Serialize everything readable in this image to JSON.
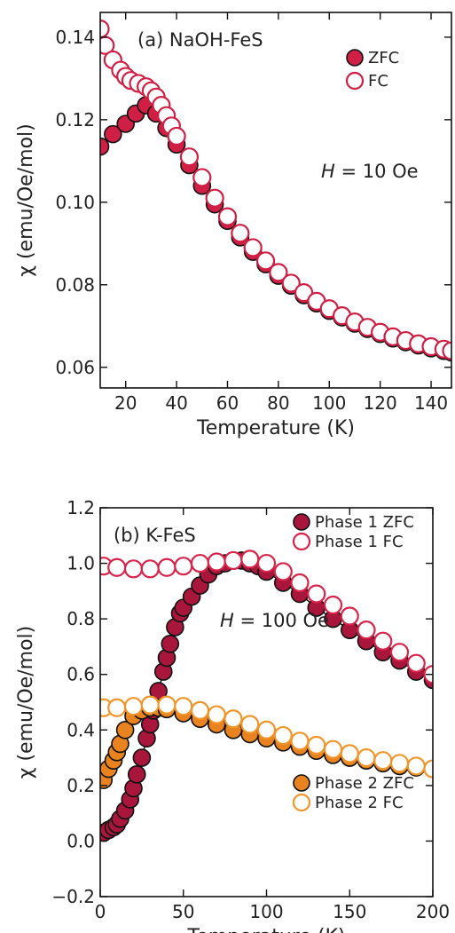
{
  "chart_data": [
    {
      "type": "scatter",
      "title": "",
      "panel_label": "(a) NaOH-FeS",
      "annotation": {
        "prefix": "H",
        "rest": " = 10 Oe"
      },
      "xlabel": "Temperature (K)",
      "ylabel": "χ (emu/Oe/mol)",
      "xlim": [
        10,
        148
      ],
      "ylim": [
        0.055,
        0.146
      ],
      "xticks": [
        20,
        40,
        60,
        80,
        100,
        120,
        140
      ],
      "yticks": [
        0.06,
        0.08,
        0.1,
        0.12,
        0.14
      ],
      "ytick_labels": [
        "0.06",
        "0.08",
        "0.10",
        "0.12",
        "0.14"
      ],
      "legend_position": "top-right",
      "series": [
        {
          "name": "ZFC",
          "marker": "filled",
          "color": "#cf1f45",
          "x": [
            10,
            15,
            20,
            24,
            28,
            32,
            36,
            40,
            45,
            50,
            55,
            60,
            65,
            70,
            75,
            80,
            85,
            90,
            95,
            100,
            105,
            110,
            115,
            120,
            125,
            130,
            135,
            140,
            145,
            148
          ],
          "y": [
            0.1135,
            0.1165,
            0.119,
            0.1215,
            0.1235,
            0.1215,
            0.118,
            0.114,
            0.109,
            0.104,
            0.0995,
            0.0955,
            0.0915,
            0.088,
            0.085,
            0.0822,
            0.0798,
            0.0775,
            0.0755,
            0.0737,
            0.0721,
            0.0706,
            0.0693,
            0.0681,
            0.067,
            0.0661,
            0.0653,
            0.0646,
            0.064,
            0.0636
          ]
        },
        {
          "name": "FC",
          "marker": "open",
          "color": "#cf1f45",
          "x": [
            10,
            12,
            15,
            18,
            20,
            22,
            25,
            28,
            30,
            32,
            34,
            36,
            38,
            40,
            45,
            50,
            55,
            60,
            65,
            70,
            75,
            80,
            85,
            90,
            95,
            100,
            105,
            110,
            115,
            120,
            125,
            130,
            135,
            140,
            145,
            148
          ],
          "y": [
            0.142,
            0.138,
            0.1345,
            0.132,
            0.1305,
            0.1295,
            0.1288,
            0.128,
            0.127,
            0.1255,
            0.1235,
            0.121,
            0.1185,
            0.116,
            0.111,
            0.106,
            0.101,
            0.0965,
            0.0925,
            0.089,
            0.0858,
            0.083,
            0.0804,
            0.0781,
            0.076,
            0.0742,
            0.0725,
            0.071,
            0.0697,
            0.0685,
            0.0674,
            0.0665,
            0.0657,
            0.065,
            0.0644,
            0.064
          ]
        }
      ]
    },
    {
      "type": "scatter",
      "title": "",
      "panel_label": "(b) K-FeS",
      "annotation": {
        "prefix": "H",
        "rest": " = 100 Oe"
      },
      "xlabel": "Temperature (K)",
      "ylabel": "χ (emu/Oe/mol)",
      "xlim": [
        0,
        200
      ],
      "ylim": [
        -0.2,
        1.2
      ],
      "xticks": [
        0,
        50,
        100,
        150,
        200
      ],
      "yticks": [
        -0.2,
        0.0,
        0.2,
        0.4,
        0.6,
        0.8,
        1.0,
        1.2
      ],
      "ytick_labels": [
        "−0.2",
        "0.0",
        "0.2",
        "0.4",
        "0.6",
        "0.8",
        "1.0",
        "1.2"
      ],
      "legend_position": "top-right and lower-right",
      "series": [
        {
          "name": "Phase 1 ZFC",
          "marker": "filled",
          "color": "#a8163c",
          "x": [
            2,
            5,
            8,
            10,
            12,
            15,
            18,
            20,
            22,
            25,
            28,
            30,
            32,
            35,
            38,
            40,
            42,
            45,
            48,
            50,
            55,
            60,
            65,
            70,
            75,
            80,
            85,
            90,
            95,
            100,
            110,
            120,
            130,
            140,
            150,
            160,
            170,
            180,
            190,
            200
          ],
          "y": [
            0.03,
            0.04,
            0.05,
            0.06,
            0.08,
            0.11,
            0.15,
            0.19,
            0.24,
            0.3,
            0.37,
            0.42,
            0.47,
            0.54,
            0.61,
            0.66,
            0.71,
            0.77,
            0.82,
            0.84,
            0.88,
            0.92,
            0.96,
            0.99,
            1.0,
            1.01,
            1.01,
            1.0,
            0.99,
            0.97,
            0.93,
            0.89,
            0.84,
            0.8,
            0.76,
            0.72,
            0.68,
            0.65,
            0.61,
            0.58
          ]
        },
        {
          "name": "Phase 1 FC",
          "marker": "open",
          "color": "#d8234a",
          "x": [
            2,
            10,
            20,
            30,
            40,
            50,
            60,
            70,
            80,
            90,
            100,
            110,
            120,
            130,
            140,
            150,
            160,
            170,
            180,
            190,
            200
          ],
          "y": [
            0.99,
            0.985,
            0.98,
            0.98,
            0.985,
            0.99,
            1.0,
            1.005,
            1.01,
            1.015,
            1.0,
            0.97,
            0.93,
            0.89,
            0.85,
            0.81,
            0.76,
            0.72,
            0.68,
            0.64,
            0.6
          ]
        },
        {
          "name": "Phase 2 ZFC",
          "marker": "filled",
          "color": "#e8831f",
          "x": [
            2,
            5,
            8,
            10,
            12,
            15,
            20,
            25,
            30,
            35,
            40,
            50,
            60,
            70,
            80,
            90,
            100,
            110,
            120,
            130,
            140,
            150,
            160,
            170,
            180,
            190,
            200
          ],
          "y": [
            0.22,
            0.26,
            0.29,
            0.32,
            0.35,
            0.4,
            0.45,
            0.47,
            0.48,
            0.48,
            0.475,
            0.46,
            0.44,
            0.42,
            0.4,
            0.385,
            0.37,
            0.355,
            0.34,
            0.325,
            0.31,
            0.3,
            0.29,
            0.28,
            0.27,
            0.265,
            0.26
          ]
        },
        {
          "name": "Phase 2 FC",
          "marker": "open",
          "color": "#f0952a",
          "x": [
            2,
            10,
            20,
            30,
            40,
            50,
            60,
            70,
            80,
            90,
            100,
            110,
            120,
            130,
            140,
            150,
            160,
            170,
            180,
            190,
            200
          ],
          "y": [
            0.48,
            0.48,
            0.485,
            0.49,
            0.49,
            0.485,
            0.47,
            0.455,
            0.44,
            0.42,
            0.4,
            0.38,
            0.36,
            0.345,
            0.33,
            0.315,
            0.3,
            0.29,
            0.28,
            0.27,
            0.26
          ]
        }
      ]
    }
  ]
}
